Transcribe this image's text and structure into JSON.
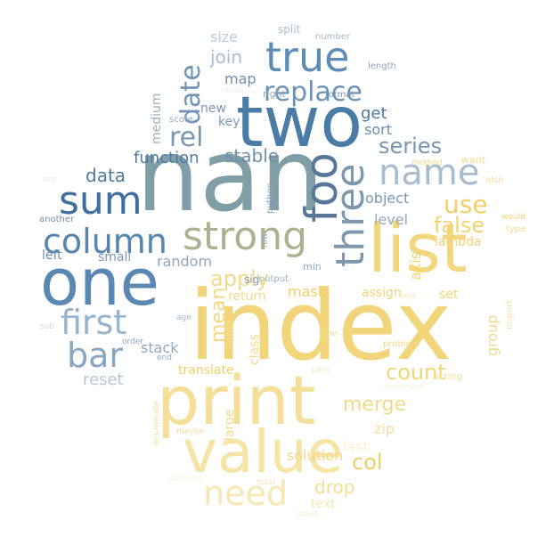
{
  "words": [
    {
      "text": "nan",
      "color": "#7f9ea8"
    },
    {
      "text": "index",
      "color": "#f2d57a"
    },
    {
      "text": "two",
      "color": "#4b7ca6"
    },
    {
      "text": "list",
      "color": "#f3d77e"
    },
    {
      "text": "one",
      "color": "#5a88b2"
    },
    {
      "text": "print",
      "color": "#f4df98"
    },
    {
      "text": "value",
      "color": "#f5e4a6"
    },
    {
      "text": "sum",
      "color": "#3f6f9e"
    },
    {
      "text": "column",
      "color": "#5486b0"
    },
    {
      "text": "strong",
      "color": "#a9b38f"
    },
    {
      "text": "true",
      "color": "#5d8db4"
    },
    {
      "text": "foo",
      "color": "#56769a"
    },
    {
      "text": "three",
      "color": "#7d98ad"
    },
    {
      "text": "name",
      "color": "#a7bccc"
    },
    {
      "text": "first",
      "color": "#96b4cc"
    },
    {
      "text": "bar",
      "color": "#88a6c1"
    },
    {
      "text": "need",
      "color": "#f6e7b4"
    },
    {
      "text": "replace",
      "color": "#6a91b7"
    },
    {
      "text": "date",
      "color": "#6f93b5"
    },
    {
      "text": "rel",
      "color": "#7a98b2"
    },
    {
      "text": "data",
      "color": "#4e7aa2"
    },
    {
      "text": "use",
      "color": "#f1d068"
    },
    {
      "text": "false",
      "color": "#f2d36e"
    },
    {
      "text": "series",
      "color": "#7695b0"
    },
    {
      "text": "apply",
      "color": "#f3d98a"
    },
    {
      "text": "mean",
      "color": "#f3d883"
    },
    {
      "text": "count",
      "color": "#f2d575"
    },
    {
      "text": "merge",
      "color": "#f3d987"
    },
    {
      "text": "col",
      "color": "#f1cf63"
    },
    {
      "text": "drop",
      "color": "#f4dd94"
    },
    {
      "text": "join",
      "color": "#a8bfd2"
    },
    {
      "text": "function",
      "color": "#4f7aa2"
    },
    {
      "text": "stable",
      "color": "#6f8fab"
    },
    {
      "text": "get",
      "color": "#4d77a0"
    },
    {
      "text": "sort",
      "color": "#6a8cab"
    },
    {
      "text": "map",
      "color": "#6f90ae"
    },
    {
      "text": "size",
      "color": "#b9cad8"
    },
    {
      "text": "medium",
      "color": "#9bb1c4"
    },
    {
      "text": "new",
      "color": "#7896b0"
    },
    {
      "text": "key",
      "color": "#7897b1"
    },
    {
      "text": "random",
      "color": "#8ea8bd"
    },
    {
      "text": "object",
      "color": "#7a98b2"
    },
    {
      "text": "level",
      "color": "#90a9be"
    },
    {
      "text": "left",
      "color": "#6f8fab"
    },
    {
      "text": "small",
      "color": "#7b98b1"
    },
    {
      "text": "mask",
      "color": "#f1d06a"
    },
    {
      "text": "return",
      "color": "#f3d88a"
    },
    {
      "text": "axis",
      "color": "#f2d476"
    },
    {
      "text": "lambda",
      "color": "#f1d172"
    },
    {
      "text": "set",
      "color": "#f2d372"
    },
    {
      "text": "assign",
      "color": "#f2d477"
    },
    {
      "text": "group",
      "color": "#f3d98a"
    },
    {
      "text": "reset",
      "color": "#b5c8d8"
    },
    {
      "text": "stack",
      "color": "#8fa8bd"
    },
    {
      "text": "class",
      "color": "#f3d884"
    },
    {
      "text": "table",
      "color": "#f4dd99"
    },
    {
      "text": "translate",
      "color": "#f1d06a"
    },
    {
      "text": "large",
      "color": "#f3d98a"
    },
    {
      "text": "zip",
      "color": "#f4dd98"
    },
    {
      "text": "solution",
      "color": "#f3d98b"
    },
    {
      "text": "last",
      "color": "#f9efcf"
    },
    {
      "text": "text",
      "color": "#f6e6b4"
    },
    {
      "text": "split",
      "color": "#a9bfd2"
    },
    {
      "text": "number",
      "color": "#a6bccf"
    },
    {
      "text": "length",
      "color": "#8ea8bd"
    },
    {
      "text": "right",
      "color": "#8ea8bd"
    },
    {
      "text": "format",
      "color": "#7896b0"
    },
    {
      "text": "score",
      "color": "#8ea8bd"
    },
    {
      "text": "python",
      "color": "#8aa4ba"
    },
    {
      "text": "sig",
      "color": "#7f9bb3"
    },
    {
      "text": "output",
      "color": "#9ab0c3"
    },
    {
      "text": "min",
      "color": "#8ea8bd"
    },
    {
      "text": "row",
      "color": "#9ab0c3"
    },
    {
      "text": "another",
      "color": "#6f8fab"
    },
    {
      "text": "method",
      "color": "#f3d988"
    },
    {
      "text": "want",
      "color": "#f3da8e"
    },
    {
      "text": "also",
      "color": "#f4de9c"
    },
    {
      "text": "would",
      "color": "#f1d06b"
    },
    {
      "text": "type",
      "color": "#f3d988"
    },
    {
      "text": "test",
      "color": "#f6e7ba"
    },
    {
      "text": "age",
      "color": "#a6bccf"
    },
    {
      "text": "order",
      "color": "#8ea8bd"
    },
    {
      "text": "end",
      "color": "#8ea8bd"
    },
    {
      "text": "time",
      "color": "#f3d988"
    },
    {
      "text": "problem",
      "color": "#f3d988"
    },
    {
      "text": "pass",
      "color": "#f6e7ba"
    },
    {
      "text": "string",
      "color": "#f4de9e"
    },
    {
      "text": "import",
      "color": "#f5e2ac"
    },
    {
      "text": "enumerate",
      "color": "#f4dd9a"
    },
    {
      "text": "maybe",
      "color": "#f4de9e"
    },
    {
      "text": "total",
      "color": "#f6e7ba"
    },
    {
      "text": "start",
      "color": "#f8eccb"
    },
    {
      "text": "sub",
      "color": "#cbd8e3"
    },
    {
      "text": "mode",
      "color": "#e6ecf1"
    },
    {
      "text": "sep",
      "color": "#e6ecf1"
    },
    {
      "text": "dataframe",
      "color": "#faf1d8"
    },
    {
      "text": "contains",
      "color": "#faf1d8"
    }
  ]
}
